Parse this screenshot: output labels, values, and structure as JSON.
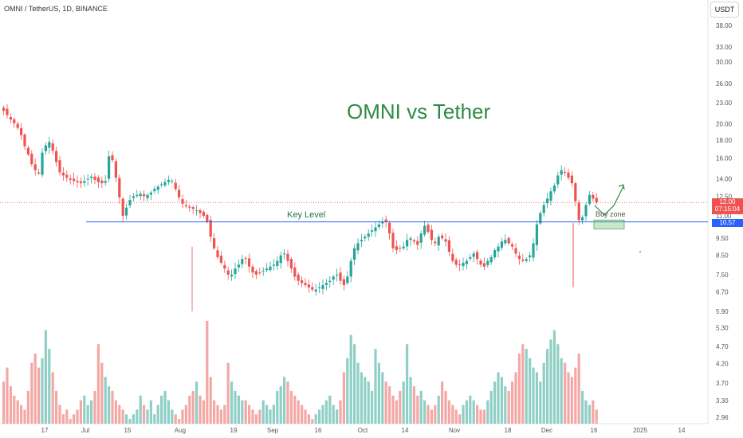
{
  "header": {
    "symbol_line": "OMNI / TetherUS, 1D, BINANCE",
    "currency_button": "USDT"
  },
  "annotations": {
    "title": "OMNI vs Tether",
    "key_level_label": "Key Level",
    "buy_zone_label": "Buy zone"
  },
  "price_tags": {
    "last_price": "12.00",
    "countdown": "07:15:04",
    "key_level_value": "10.57"
  },
  "colors": {
    "up": "#26a69a",
    "down": "#ef5350",
    "up_volume": "#8fcfc6",
    "down_volume": "#f4a8a5",
    "key_level_line": "#2962ff",
    "annotation_green": "#2e8b45",
    "last_price_tag": "#ef5350",
    "key_level_tag": "#2962ff"
  },
  "chart_data": {
    "type": "candlestick",
    "title": "OMNI vs Tether",
    "y_scale": "log",
    "y_ticks": [
      "38.00",
      "33.00",
      "30.00",
      "26.00",
      "23.00",
      "20.00",
      "18.00",
      "16.00",
      "14.00",
      "12.50",
      "11.00",
      "9.50",
      "8.50",
      "7.50",
      "6.70",
      "5.90",
      "5.30",
      "4.70",
      "4.20",
      "3.70",
      "3.30",
      "2.96"
    ],
    "x_ticks": [
      "17",
      "Jul",
      "15",
      "Aug",
      "19",
      "Sep",
      "16",
      "Oct",
      "14",
      "Nov",
      "18",
      "Dec",
      "16",
      "2025",
      "14"
    ],
    "key_level": 10.57,
    "last_price": 12.0,
    "buy_zone": {
      "low": 10.1,
      "high": 10.7
    },
    "close_series": [
      21.8,
      21.2,
      20.6,
      20.1,
      19.5,
      18.6,
      17.3,
      16.4,
      15.4,
      14.8,
      14.5,
      16.6,
      17.4,
      17.8,
      16.8,
      15.6,
      14.6,
      14.3,
      14.1,
      13.9,
      13.8,
      13.7,
      13.6,
      13.8,
      14.0,
      14.2,
      13.9,
      13.7,
      13.6,
      13.8,
      16.2,
      15.8,
      14.1,
      12.4,
      11.0,
      11.6,
      12.2,
      12.5,
      12.6,
      12.7,
      12.5,
      12.6,
      12.8,
      13.1,
      13.3,
      13.5,
      13.7,
      13.9,
      13.8,
      13.1,
      12.4,
      11.9,
      11.7,
      11.6,
      11.5,
      11.4,
      11.2,
      11.0,
      10.6,
      9.6,
      8.9,
      8.4,
      8.1,
      7.8,
      7.5,
      7.5,
      7.8,
      8.0,
      8.3,
      8.3,
      7.9,
      7.6,
      7.5,
      7.6,
      7.7,
      7.8,
      7.9,
      8.0,
      8.2,
      8.5,
      8.6,
      8.2,
      7.8,
      7.4,
      7.2,
      7.1,
      7.0,
      6.9,
      6.8,
      6.8,
      6.9,
      7.0,
      7.1,
      7.2,
      7.4,
      7.5,
      7.2,
      7.0,
      7.4,
      8.2,
      8.9,
      9.2,
      9.4,
      9.6,
      9.8,
      10.0,
      10.2,
      10.4,
      10.6,
      10.6,
      9.8,
      8.9,
      8.8,
      8.9,
      9.0,
      9.4,
      9.5,
      9.3,
      9.1,
      9.8,
      10.3,
      9.9,
      9.4,
      9.2,
      9.6,
      9.5,
      9.3,
      8.7,
      8.2,
      8.0,
      8.0,
      8.1,
      8.2,
      8.4,
      8.6,
      8.3,
      8.0,
      7.9,
      8.2,
      8.4,
      8.8,
      9.0,
      9.3,
      9.4,
      9.2,
      9.0,
      8.6,
      8.3,
      8.2,
      8.3,
      8.5,
      9.2,
      10.4,
      11.2,
      11.8,
      12.3,
      12.9,
      13.4,
      14.3,
      14.8,
      14.6,
      14.1,
      13.6,
      12.1,
      10.7,
      10.9,
      11.8,
      12.6,
      12.3,
      12.0
    ],
    "volume_series": [
      3.8,
      4.1,
      3.7,
      3.5,
      3.4,
      3.3,
      3.2,
      3.6,
      4.2,
      4.4,
      4.1,
      4.3,
      4.9,
      4.5,
      4.0,
      3.6,
      3.3,
      3.1,
      3.2,
      3.0,
      3.1,
      3.2,
      3.4,
      3.5,
      3.3,
      3.4,
      3.6,
      4.6,
      4.2,
      3.9,
      3.7,
      3.6,
      3.4,
      3.3,
      3.2,
      3.1,
      3.0,
      3.1,
      3.2,
      3.5,
      3.3,
      3.2,
      3.4,
      3.1,
      3.3,
      3.5,
      3.6,
      3.4,
      3.2,
      3.1,
      3.0,
      3.2,
      3.3,
      3.5,
      3.6,
      3.8,
      3.5,
      3.4,
      5.1,
      3.9,
      3.4,
      3.3,
      3.2,
      3.3,
      4.2,
      3.8,
      3.6,
      3.5,
      3.4,
      3.4,
      3.3,
      3.2,
      3.1,
      3.2,
      3.4,
      3.3,
      3.2,
      3.3,
      3.6,
      3.7,
      3.9,
      3.8,
      3.6,
      3.5,
      3.4,
      3.3,
      3.2,
      3.1,
      3.0,
      3.1,
      3.2,
      3.3,
      3.4,
      3.5,
      3.3,
      3.2,
      3.4,
      4.0,
      4.3,
      4.8,
      4.6,
      4.2,
      4.0,
      3.9,
      3.8,
      3.6,
      4.5,
      4.2,
      4.0,
      3.8,
      3.7,
      3.5,
      3.4,
      3.6,
      3.8,
      4.6,
      3.9,
      3.7,
      3.5,
      3.6,
      3.4,
      3.3,
      3.2,
      3.3,
      3.5,
      3.8,
      3.6,
      3.4,
      3.3,
      3.2,
      3.1,
      3.3,
      3.4,
      3.5,
      3.4,
      3.3,
      3.2,
      3.2,
      3.4,
      3.6,
      3.8,
      4.0,
      3.9,
      3.7,
      3.6,
      3.8,
      4.0,
      4.4,
      4.6,
      4.5,
      4.3,
      4.1,
      4.0,
      3.8,
      4.2,
      4.5,
      4.7,
      4.9,
      4.6,
      4.3,
      4.2,
      4.0,
      3.9,
      4.1,
      4.4,
      3.6,
      3.4,
      3.3,
      3.4,
      3.2
    ]
  }
}
